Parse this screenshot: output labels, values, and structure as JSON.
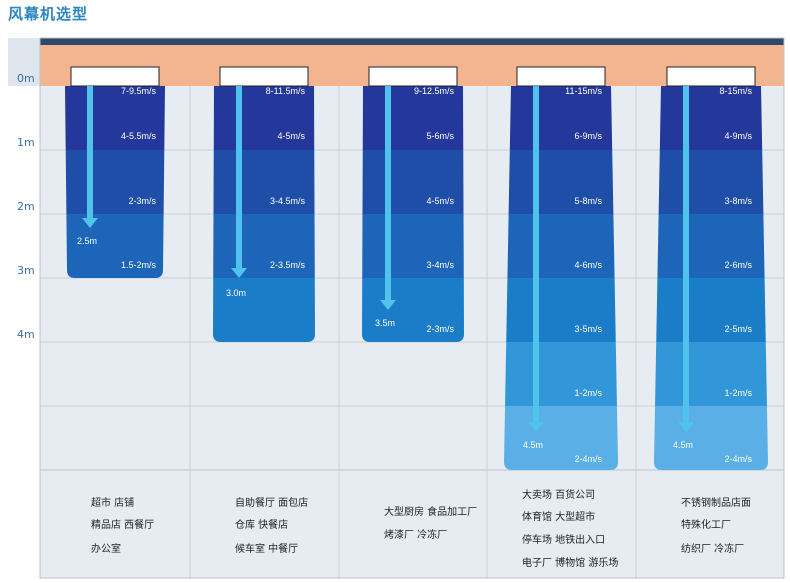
{
  "title": "风幕机选型",
  "y_axis": {
    "labels": [
      "0m",
      "1m",
      "2m",
      "3m",
      "4m"
    ]
  },
  "columns": [
    {
      "speeds": [
        "7-9.5m/s",
        "4-5.5m/s",
        "2-3m/s",
        "1.5-2m/s"
      ],
      "distance": "2.5m",
      "applications": [
        "超市 店铺",
        "精品店 西餐厅",
        "办公室"
      ]
    },
    {
      "speeds": [
        "8-11.5m/s",
        "4-5m/s",
        "3-4.5m/s",
        "2-3.5m/s"
      ],
      "distance": "3.0m",
      "applications": [
        "自助餐厅 面包店",
        "仓库 快餐店",
        "候车室 中餐厅"
      ]
    },
    {
      "speeds": [
        "9-12.5m/s",
        "5-6m/s",
        "4-5m/s",
        "3-4m/s",
        "2-3m/s"
      ],
      "distance": "3.5m",
      "applications": [
        "大型厨房 食品加工厂",
        "烤漆厂 冷冻厂"
      ]
    },
    {
      "speeds": [
        "11-15m/s",
        "6-9m/s",
        "5-8m/s",
        "4-6m/s",
        "3-5m/s",
        "1-2m/s",
        "2-4m/s"
      ],
      "distance": "4.5m",
      "applications": [
        "大卖场 百货公司",
        "体育馆 大型超市",
        "停车场 地铁出入口",
        "电子厂 博物馆 游乐场"
      ]
    },
    {
      "speeds": [
        "8-15m/s",
        "4-9m/s",
        "3-8m/s",
        "2-6m/s",
        "2-5m/s",
        "1-2m/s",
        "2-4m/s"
      ],
      "distance": "4.5m",
      "applications": [
        "不锈钢制品店面",
        "特殊化工厂",
        "纺织厂 冷冻厂"
      ]
    }
  ],
  "colors": {
    "panel_bg": "#e6ecf2",
    "ceiling": "#f3b590",
    "header_bar": "#2e4966",
    "grid_line": "#c7d0da",
    "bands": [
      "#23389a",
      "#1f4ea9",
      "#1c65b8",
      "#1b7cc7",
      "#3197d8",
      "#5ab0e6",
      "#8ccbf1"
    ],
    "arrow": "#4fc3ec"
  }
}
